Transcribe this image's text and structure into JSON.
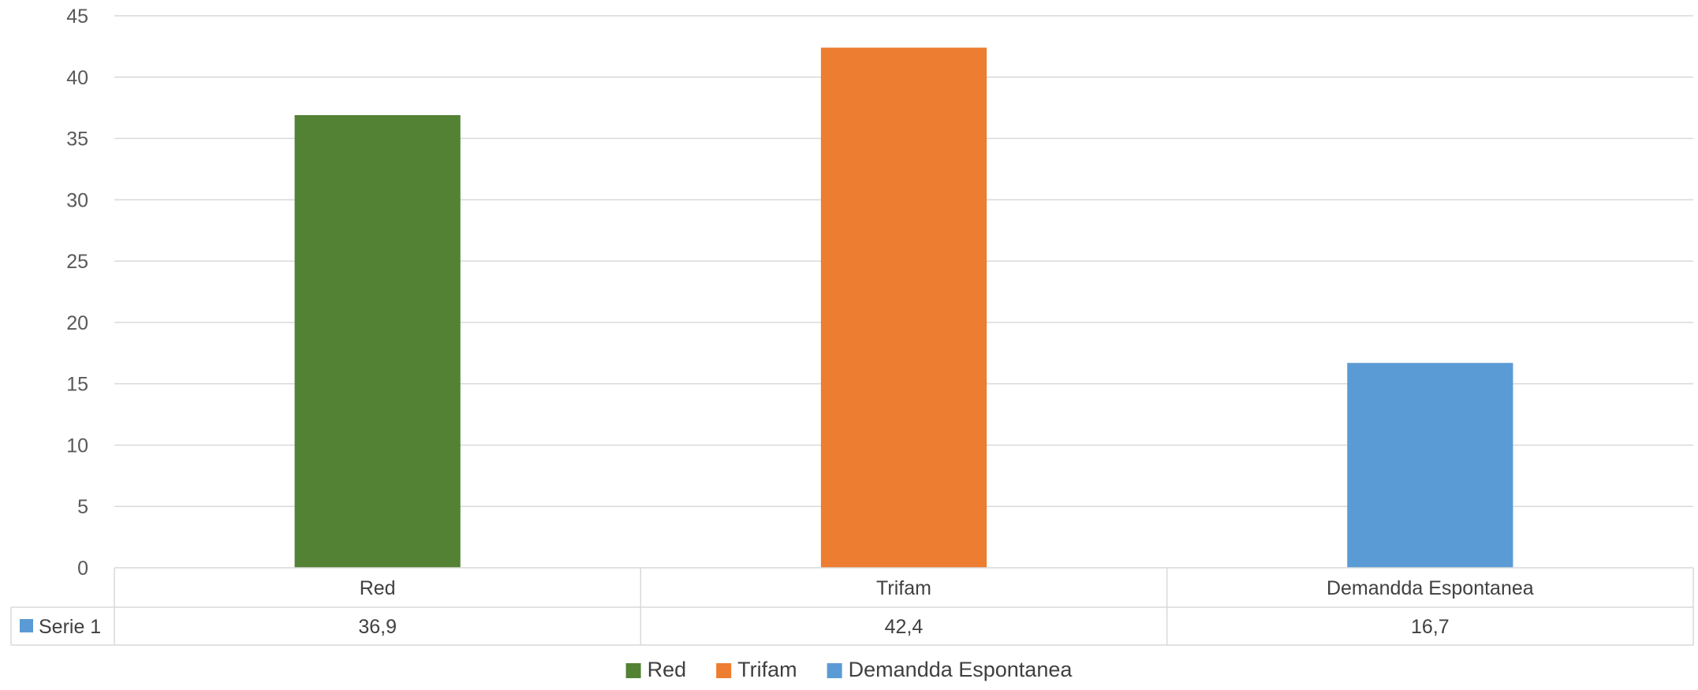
{
  "chart_data": {
    "type": "bar",
    "categories": [
      "Red",
      "Trifam",
      "Demandda Espontanea"
    ],
    "series": [
      {
        "name": "Serie 1",
        "values": [
          36.9,
          42.4,
          16.7
        ]
      }
    ],
    "value_labels": [
      "36,9",
      "42,4",
      "16,7"
    ],
    "ylim": [
      0,
      45
    ],
    "yticks": [
      0,
      5,
      10,
      15,
      20,
      25,
      30,
      35,
      40,
      45
    ],
    "grid": true,
    "data_table": true,
    "legend_position": "bottom",
    "legend": [
      {
        "label": "Red",
        "color": "#548235"
      },
      {
        "label": "Trifam",
        "color": "#ED7D31"
      },
      {
        "label": "Demandda Espontanea",
        "color": "#5B9BD5"
      }
    ],
    "series_color": "#5B9BD5",
    "bar_colors": [
      "#548235",
      "#ED7D31",
      "#5B9BD5"
    ],
    "title": "",
    "xlabel": "",
    "ylabel": ""
  }
}
